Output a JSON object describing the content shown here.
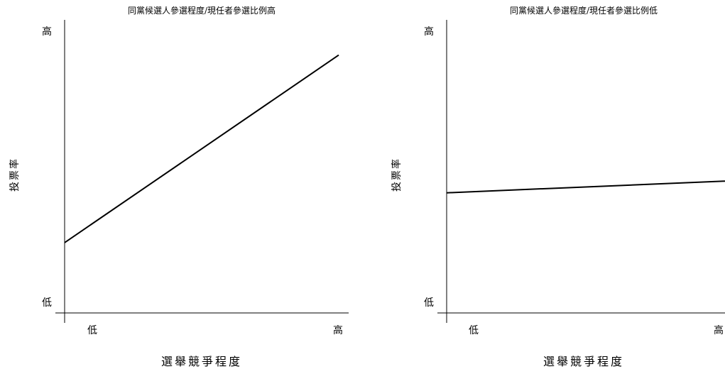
{
  "chart_data": [
    {
      "type": "line",
      "title": "同黨候選人參選程度/現任者參選比例高",
      "xlabel": "選舉競爭程度",
      "ylabel": "投票率",
      "x_ticks": [
        "低",
        "高"
      ],
      "y_ticks": [
        "低",
        "高"
      ],
      "xlim": [
        0,
        1
      ],
      "ylim": [
        0,
        1
      ],
      "series": [
        {
          "x": [
            0,
            1
          ],
          "y": [
            0.24,
            0.88
          ]
        }
      ],
      "grid": false
    },
    {
      "type": "line",
      "title": "同黨候選人參選程度/現任者參選比例低",
      "xlabel": "選舉競爭程度",
      "ylabel": "投票率",
      "x_ticks": [
        "低",
        "高"
      ],
      "y_ticks": [
        "低",
        "高"
      ],
      "xlim": [
        0,
        1
      ],
      "ylim": [
        0,
        1
      ],
      "series": [
        {
          "x": [
            0,
            1
          ],
          "y": [
            0.41,
            0.45
          ]
        }
      ],
      "grid": false
    }
  ]
}
